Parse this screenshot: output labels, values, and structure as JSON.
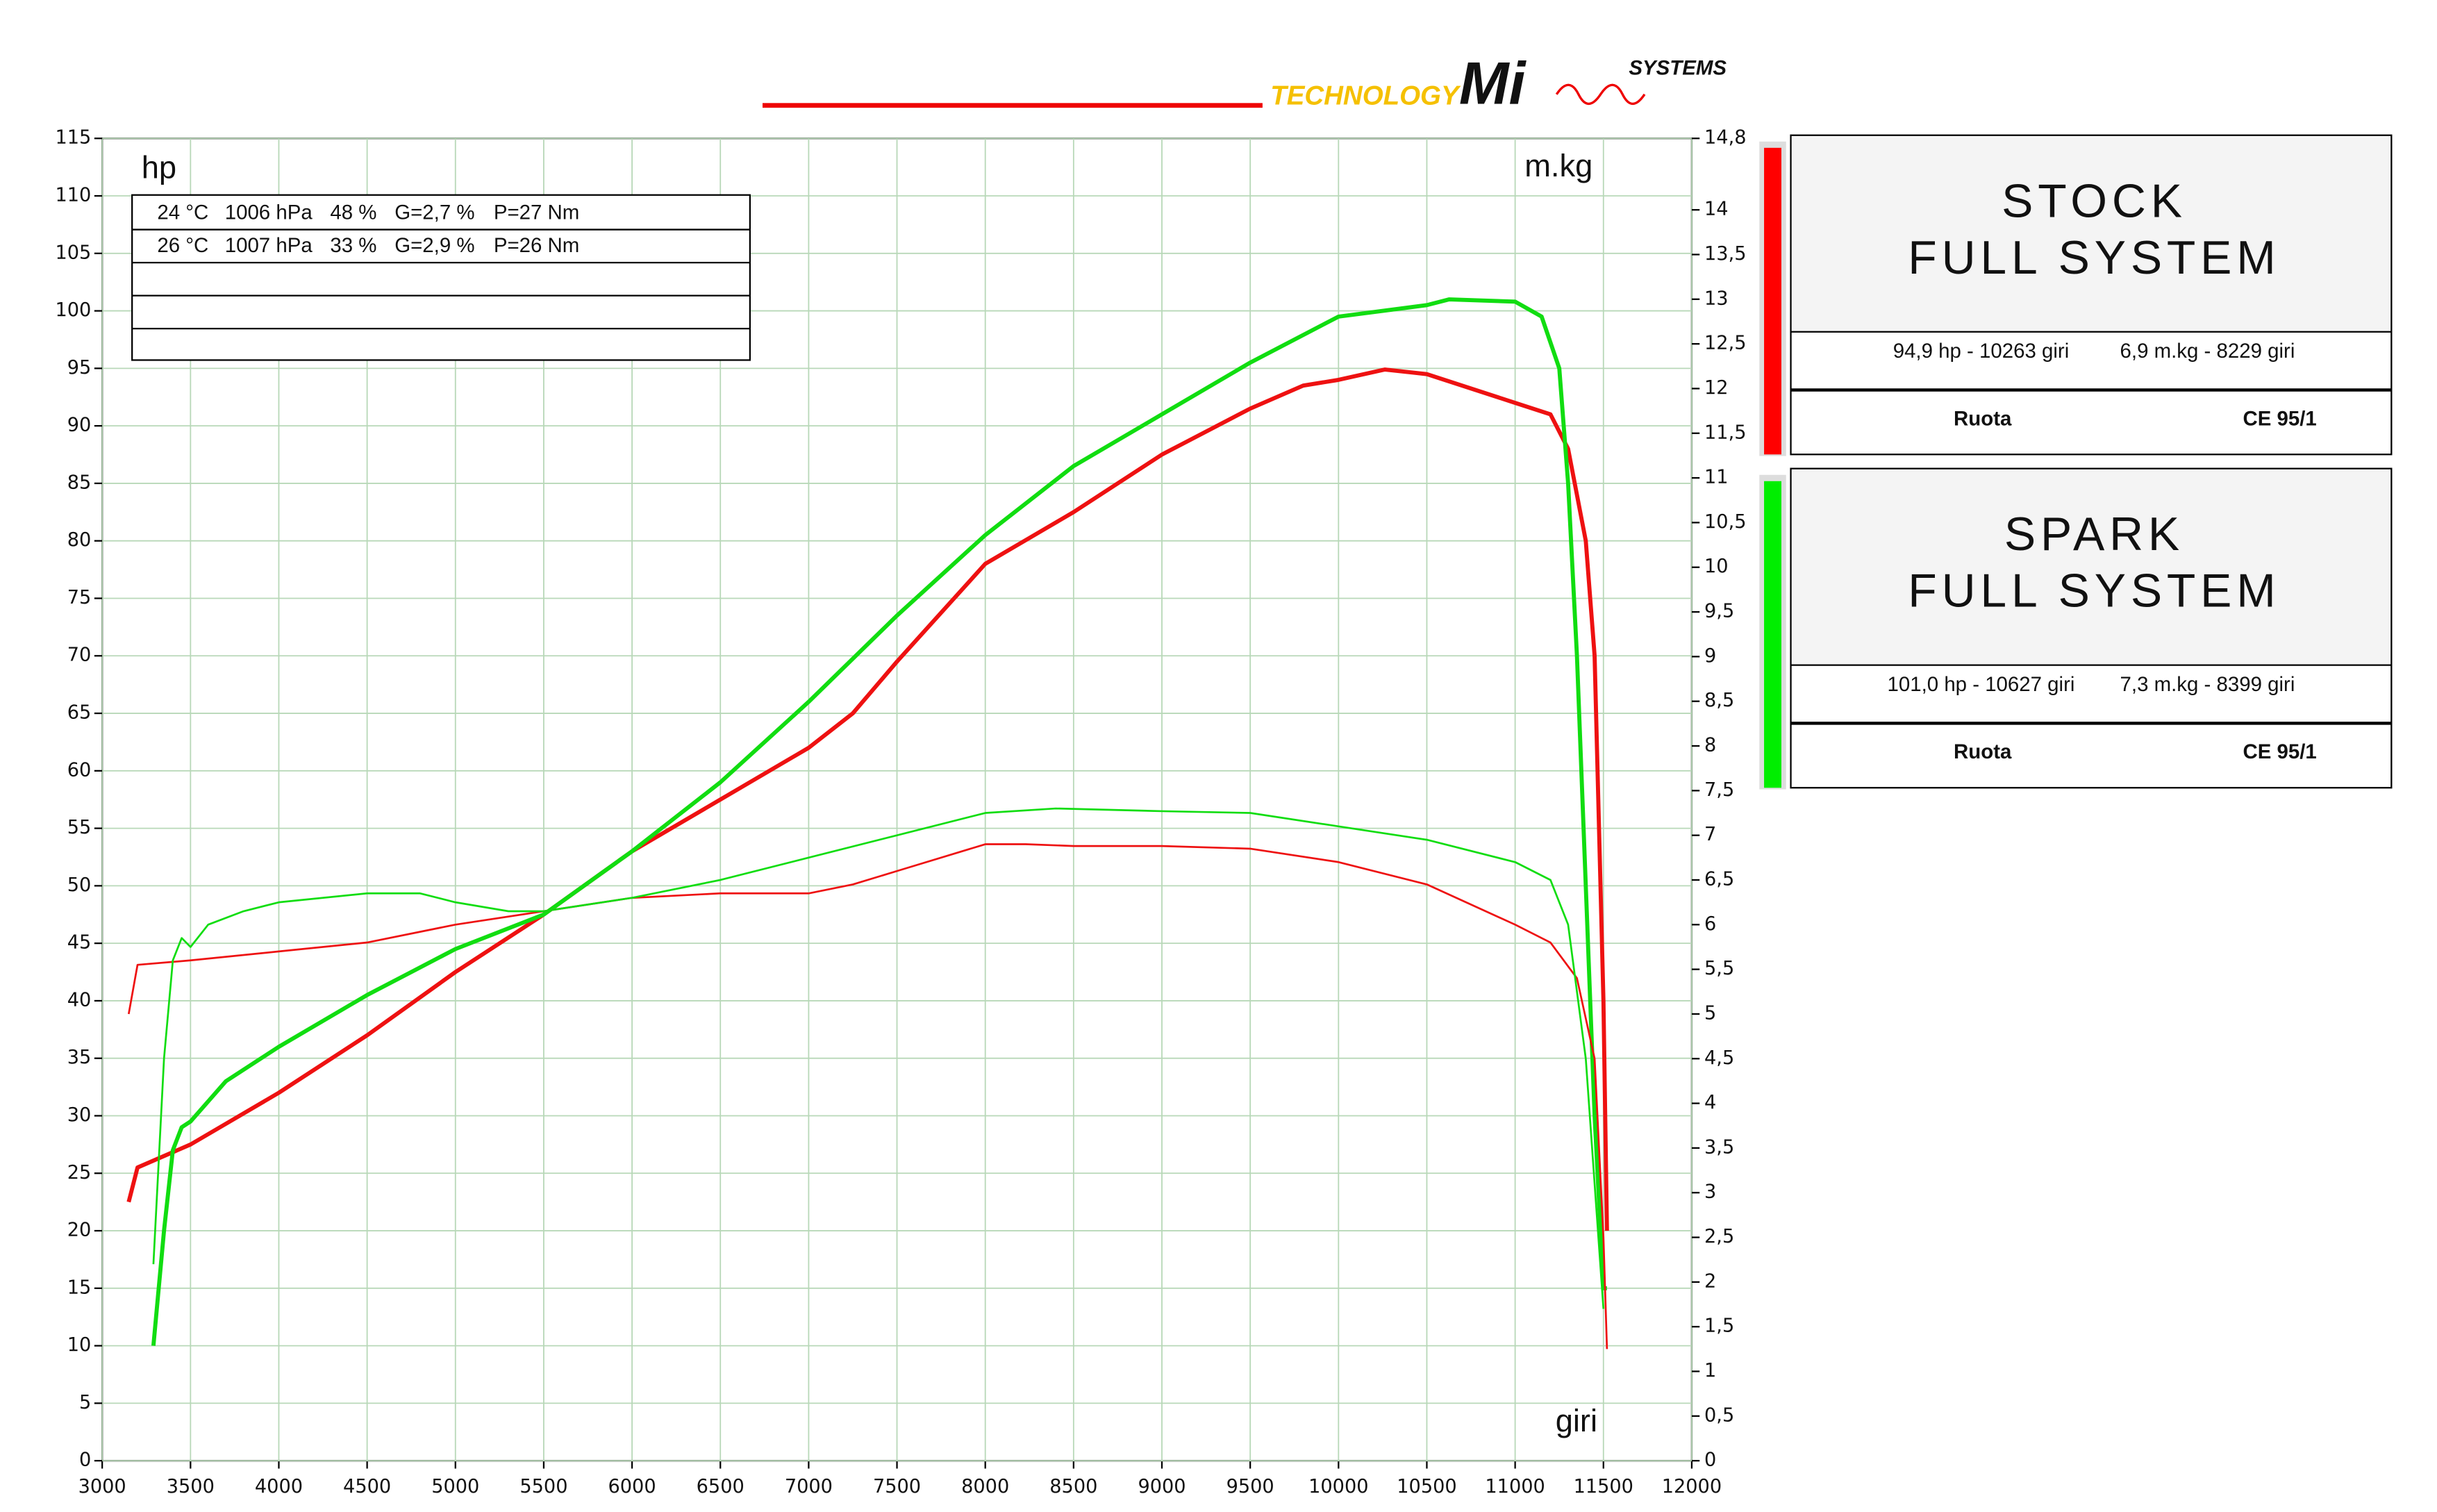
{
  "header": {
    "logo": [
      "TECHNOLOGY",
      "Mi",
      "SYSTEMS"
    ]
  },
  "conditions": [
    [
      "24 °C",
      "1006 hPa",
      "48 %",
      "G=2,7 %",
      "P=27 Nm"
    ],
    [
      "26 °C",
      "1007 hPa",
      "33 %",
      "G=2,9 %",
      "P=26 Nm"
    ]
  ],
  "legend": [
    {
      "color": "#ff0000",
      "title": [
        "STOCK",
        "FULL SYSTEM"
      ],
      "stats": [
        "94,9 hp - 10263 giri",
        "6,9 m.kg - 8229 giri"
      ],
      "footer": [
        "Ruota",
        "CE 95/1"
      ]
    },
    {
      "color": "#00ee00",
      "title": [
        "SPARK",
        "FULL SYSTEM"
      ],
      "stats": [
        "101,0 hp - 10627 giri",
        "7,3 m.kg - 8399 giri"
      ],
      "footer": [
        "Ruota",
        "CE 95/1"
      ]
    }
  ],
  "chart_data": {
    "type": "line",
    "y_label": "hp",
    "y2_label": "m.kg",
    "x_label": "giri",
    "xlim": [
      3000,
      12000
    ],
    "xticks": [
      3000,
      3500,
      4000,
      4500,
      5000,
      5500,
      6000,
      6500,
      7000,
      7500,
      8000,
      8500,
      9000,
      9500,
      10000,
      10500,
      11000,
      11500,
      12000
    ],
    "ylim": [
      0,
      115
    ],
    "yticks": [
      0,
      5,
      10,
      15,
      20,
      25,
      30,
      35,
      40,
      45,
      50,
      55,
      60,
      65,
      70,
      75,
      80,
      85,
      90,
      95,
      100,
      105,
      110,
      115
    ],
    "y2lim": [
      0,
      14.8
    ],
    "y2ticks": [
      0,
      {
        "value": 0.5,
        "label": "0,5"
      },
      1,
      {
        "value": 1.5,
        "label": "1,5"
      },
      2,
      {
        "value": 2.5,
        "label": "2,5"
      },
      3,
      {
        "value": 3.5,
        "label": "3,5"
      },
      4,
      {
        "value": 4.5,
        "label": "4,5"
      },
      5,
      {
        "value": 5.5,
        "label": "5,5"
      },
      6,
      {
        "value": 6.5,
        "label": "6,5"
      },
      7,
      {
        "value": 7.5,
        "label": "7,5"
      },
      8,
      {
        "value": 8.5,
        "label": "8,5"
      },
      9,
      {
        "value": 9.5,
        "label": "9,5"
      },
      10,
      {
        "value": 10.5,
        "label": "10,5"
      },
      11,
      {
        "value": 11.5,
        "label": "11,5"
      },
      12,
      {
        "value": 12.5,
        "label": "12,5"
      },
      13,
      {
        "value": 13.5,
        "label": "13,5"
      },
      14,
      {
        "value": 14.8,
        "label": "14,8"
      }
    ],
    "grid": true,
    "series": [
      {
        "color": "#ee1111",
        "axis": "y",
        "x": [
          3150,
          3200,
          3500,
          4000,
          4500,
          5000,
          5500,
          6000,
          6500,
          7000,
          7250,
          7500,
          8000,
          8500,
          9000,
          9500,
          9800,
          10000,
          10263,
          10500,
          11000,
          11200,
          11300,
          11400,
          11450,
          11500,
          11520
        ],
        "values": [
          22.5,
          25.5,
          27.5,
          32,
          37,
          42.5,
          47.5,
          53,
          57.5,
          62,
          65,
          69.5,
          78,
          82.5,
          87.5,
          91.5,
          93.5,
          94,
          94.9,
          94.5,
          92,
          91,
          88,
          80,
          70,
          40,
          20
        ]
      },
      {
        "color": "#11dd11",
        "axis": "y",
        "x": [
          3290,
          3350,
          3400,
          3450,
          3500,
          3700,
          4000,
          4500,
          5000,
          5500,
          6000,
          6500,
          7000,
          7500,
          8000,
          8500,
          9000,
          9500,
          10000,
          10500,
          10627,
          11000,
          11150,
          11250,
          11300,
          11350,
          11400,
          11450,
          11500,
          11520
        ],
        "values": [
          10,
          20,
          27,
          29,
          29.5,
          33,
          36,
          40.5,
          44.5,
          47.5,
          53,
          59,
          66,
          73.5,
          80.5,
          86.5,
          91,
          95.5,
          99.5,
          100.5,
          101,
          100.8,
          99.5,
          95,
          85,
          70,
          50,
          30,
          15,
          15
        ]
      },
      {
        "color": "#ee1111",
        "axis": "y2",
        "x": [
          3150,
          3200,
          3500,
          4000,
          4500,
          5000,
          5500,
          6000,
          6500,
          7000,
          7250,
          7500,
          8000,
          8229,
          8500,
          9000,
          9500,
          10000,
          10500,
          11000,
          11200,
          11350,
          11450,
          11500,
          11520
        ],
        "values": [
          5.0,
          5.55,
          5.6,
          5.7,
          5.8,
          6.0,
          6.15,
          6.3,
          6.35,
          6.35,
          6.45,
          6.6,
          6.9,
          6.9,
          6.88,
          6.88,
          6.85,
          6.7,
          6.45,
          6.0,
          5.8,
          5.4,
          4.5,
          2.5,
          1.25
        ]
      },
      {
        "color": "#11dd11",
        "axis": "y2",
        "x": [
          3290,
          3350,
          3400,
          3450,
          3500,
          3600,
          3800,
          4000,
          4500,
          4800,
          5000,
          5300,
          5500,
          6000,
          6500,
          7000,
          7500,
          8000,
          8399,
          9000,
          9500,
          10000,
          10500,
          11000,
          11200,
          11300,
          11400,
          11500
        ],
        "values": [
          2.2,
          4.5,
          5.6,
          5.85,
          5.75,
          6.0,
          6.15,
          6.25,
          6.35,
          6.35,
          6.25,
          6.15,
          6.15,
          6.3,
          6.5,
          6.75,
          7.0,
          7.25,
          7.3,
          7.27,
          7.25,
          7.1,
          6.95,
          6.7,
          6.5,
          6.0,
          4.5,
          1.7
        ]
      }
    ]
  }
}
